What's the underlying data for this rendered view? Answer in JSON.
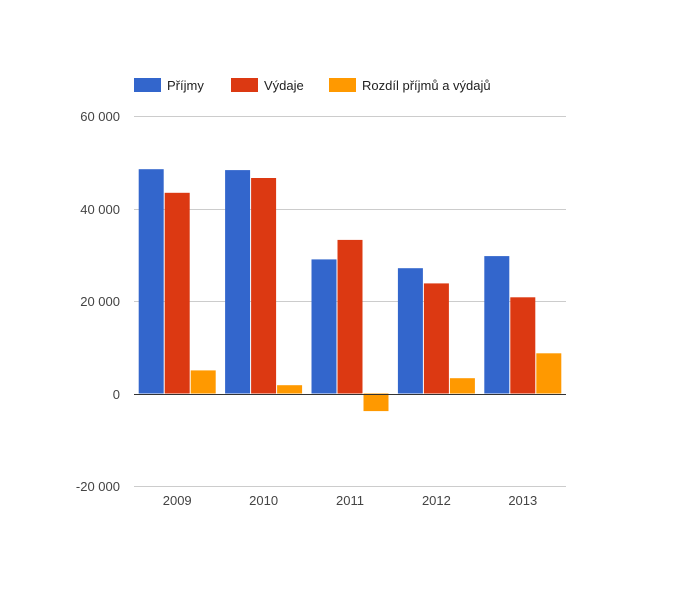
{
  "chart_data": {
    "type": "bar",
    "categories": [
      "2009",
      "2010",
      "2011",
      "2012",
      "2013"
    ],
    "series": [
      {
        "name": "Příjmy",
        "color": "#3366cc",
        "values": [
          48500,
          48300,
          29000,
          27100,
          29700
        ]
      },
      {
        "name": "Výdaje",
        "color": "#dc3912",
        "values": [
          43400,
          46600,
          33200,
          23800,
          20800
        ]
      },
      {
        "name": "Rozdíl příjmů a výdajů",
        "color": "#ff9900",
        "values": [
          5000,
          1800,
          -3800,
          3300,
          8700
        ]
      }
    ],
    "ylim": [
      -20000,
      60000
    ],
    "yticks": [
      60000,
      40000,
      20000,
      0,
      -20000
    ],
    "ytick_labels": [
      "60 000",
      "40 000",
      "20 000",
      "0",
      "-20 000"
    ],
    "grid": true,
    "legend": "top-left"
  }
}
